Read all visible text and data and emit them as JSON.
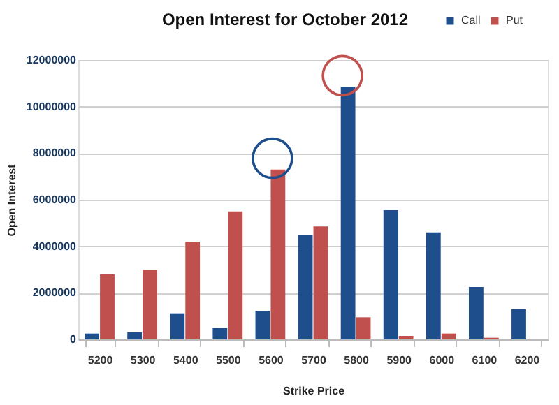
{
  "chart_data": {
    "type": "bar",
    "title": "Open Interest for October 2012",
    "xlabel": "Strike Price",
    "ylabel": "Open Interest",
    "categories": [
      "5200",
      "5300",
      "5400",
      "5500",
      "5600",
      "5700",
      "5800",
      "5900",
      "6000",
      "6100",
      "6200"
    ],
    "series": [
      {
        "name": "Call",
        "color": "#1f4e8c",
        "values": [
          250000,
          300000,
          1120000,
          480000,
          1220000,
          4500000,
          10850000,
          5550000,
          4600000,
          2250000,
          1300000
        ]
      },
      {
        "name": "Put",
        "color": "#c0504d",
        "values": [
          2800000,
          3000000,
          4200000,
          5500000,
          7300000,
          4850000,
          950000,
          150000,
          250000,
          70000,
          0
        ]
      }
    ],
    "ylim": [
      0,
      12000000
    ],
    "yticks": [
      0,
      2000000,
      4000000,
      6000000,
      8000000,
      10000000,
      12000000
    ],
    "grid": "y",
    "legend": "top right"
  }
}
